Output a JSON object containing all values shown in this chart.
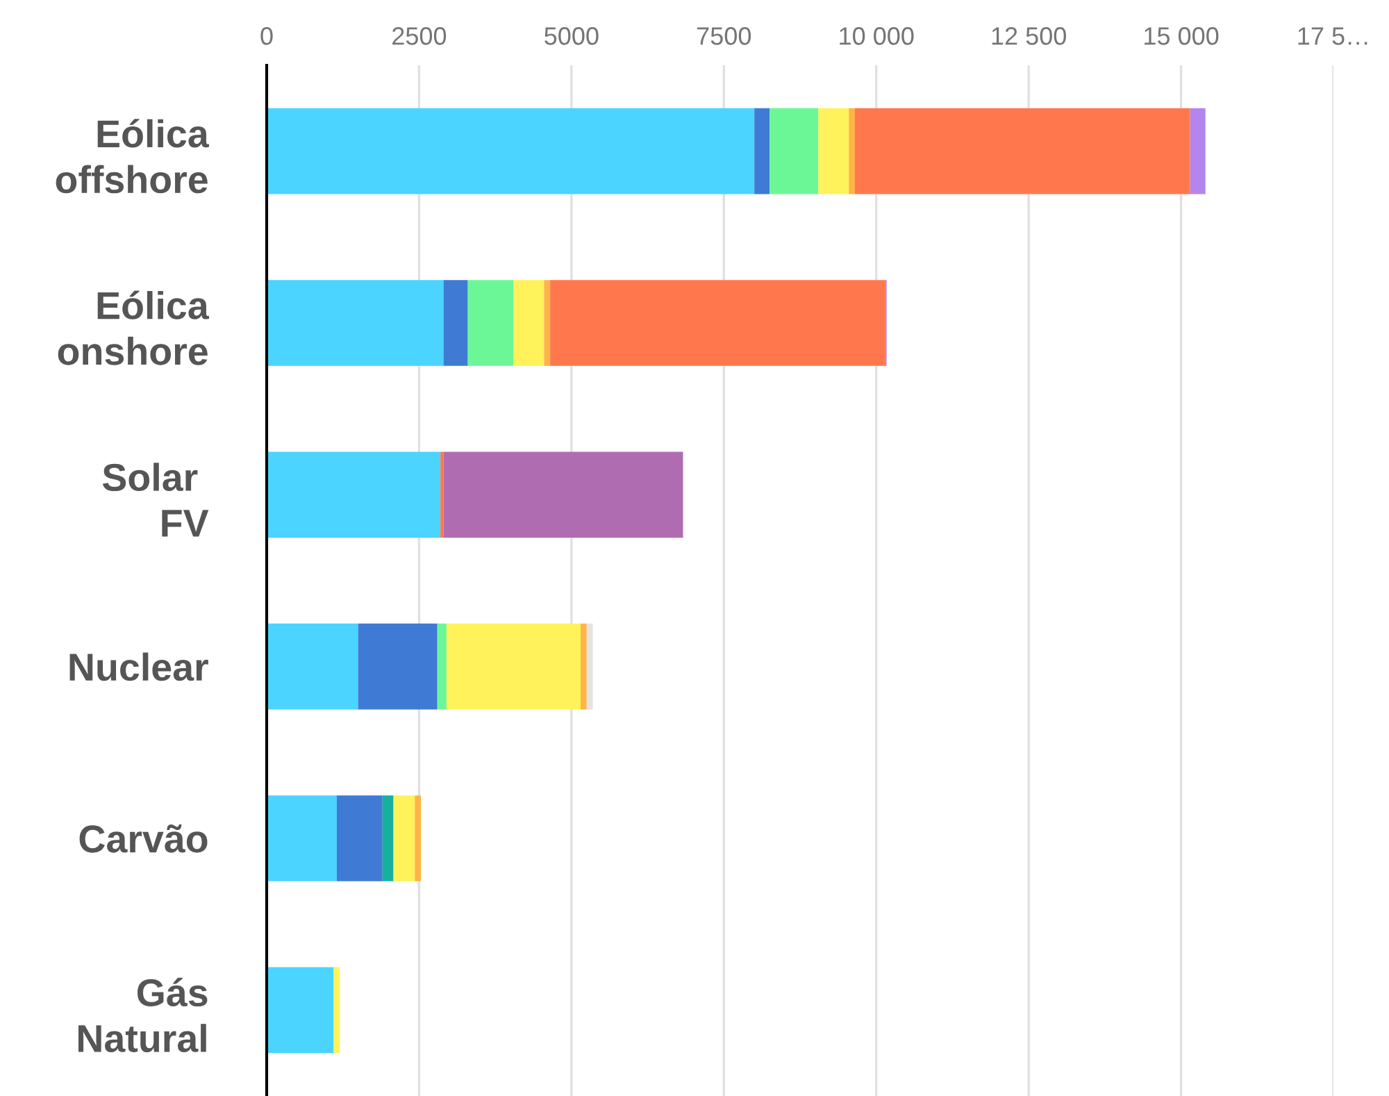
{
  "chart_data": {
    "type": "bar",
    "orientation": "horizontal",
    "stacked": true,
    "categories": [
      "Eólica\noffshore",
      "Eólica\nonshore",
      "Solar \nFV",
      "Nuclear",
      "Carvão",
      "Gás\nNatural"
    ],
    "series": [
      {
        "color": "#4ad4ff",
        "values": [
          8000,
          2900,
          2850,
          1500,
          1150,
          1100
        ]
      },
      {
        "color": "#3f7bd4",
        "values": [
          250,
          400,
          null,
          1300,
          750,
          null
        ]
      },
      {
        "color": "#6cf797",
        "values": [
          800,
          750,
          null,
          150,
          null,
          null
        ]
      },
      {
        "color": "#15b0a0",
        "values": [
          null,
          null,
          null,
          null,
          180,
          null
        ]
      },
      {
        "color": "#fff25a",
        "values": [
          500,
          500,
          null,
          2200,
          350,
          100
        ]
      },
      {
        "color": "#ffb447",
        "values": [
          100,
          100,
          null,
          100,
          100,
          null
        ]
      },
      {
        "color": "#ff784d",
        "values": [
          5500,
          5500,
          50,
          null,
          null,
          null
        ]
      },
      {
        "color": "#b485ef",
        "values": [
          250,
          20,
          null,
          null,
          null,
          null
        ]
      },
      {
        "color": "#b06cb1",
        "values": [
          null,
          null,
          3930,
          null,
          null,
          null
        ]
      },
      {
        "color": "#e3e3e3",
        "values": [
          null,
          null,
          null,
          100,
          null,
          null
        ]
      }
    ],
    "xlim": [
      0,
      17500
    ],
    "xticks": [
      0,
      2500,
      5000,
      7500,
      {
        "value": 10000,
        "label": "10 000"
      },
      {
        "value": 12500,
        "label": "12 500"
      },
      {
        "value": 15000,
        "label": "15 000"
      },
      {
        "value": 17500,
        "label": "17 5…"
      }
    ],
    "grid": "x"
  }
}
